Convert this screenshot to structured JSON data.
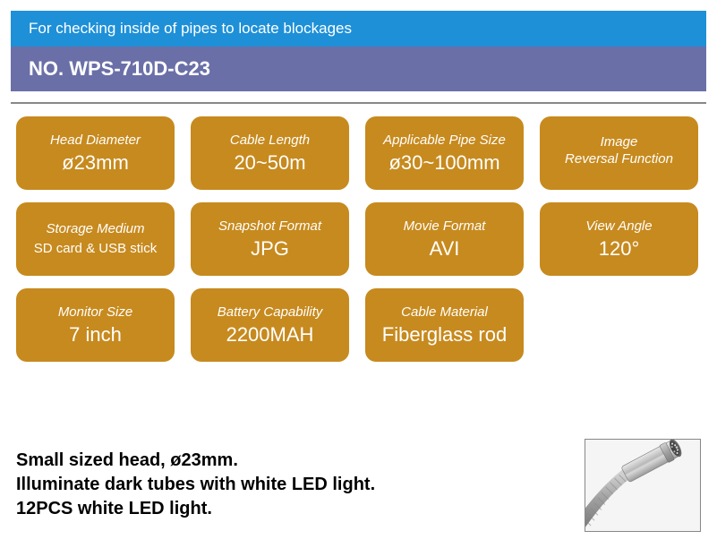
{
  "banner_blue": "For checking inside of pipes to locate blockages",
  "banner_purple": "NO. WPS-710D-C23",
  "colors": {
    "blue": "#1e90d8",
    "purple": "#6a6fa8",
    "tile": "#c78a1e",
    "text_white": "#ffffff",
    "divider": "#888888",
    "desc_text": "#000000"
  },
  "tiles": [
    {
      "label": "Head Diameter",
      "value": "ø23mm"
    },
    {
      "label": "Cable Length",
      "value": "20~50m"
    },
    {
      "label": "Applicable Pipe Size",
      "value": "ø30~100mm"
    },
    {
      "label": "Image\nReversal Function",
      "value": ""
    },
    {
      "label": "Storage Medium",
      "value": "SD card & USB stick",
      "small": true
    },
    {
      "label": "Snapshot Format",
      "value": "JPG"
    },
    {
      "label": "Movie Format",
      "value": "AVI"
    },
    {
      "label": "View Angle",
      "value": "120°"
    },
    {
      "label": "Monitor Size",
      "value": "7 inch"
    },
    {
      "label": "Battery Capability",
      "value": "2200MAH"
    },
    {
      "label": "Cable Material",
      "value": "Fiberglass rod"
    }
  ],
  "description": {
    "line1": "Small sized head, ø23mm.",
    "line2": "Illuminate dark tubes with white LED light.",
    "line3": "12PCS white LED light."
  },
  "thumbnail": {
    "alt": "camera-head"
  }
}
